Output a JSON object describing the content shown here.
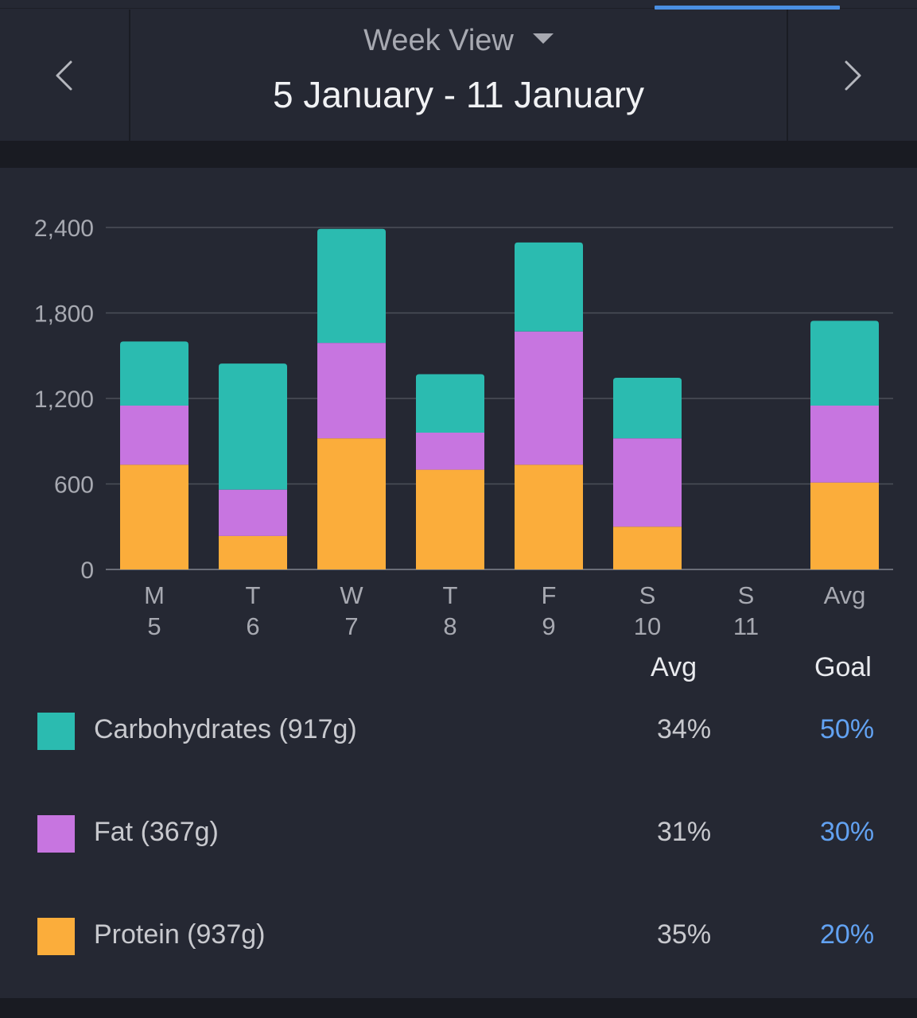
{
  "header": {
    "view_label": "Week View",
    "date_range": "5 January - 11 January"
  },
  "colors": {
    "carbohydrates": "#2bbbb0",
    "fat": "#c775e0",
    "protein": "#fbad3b",
    "goal_text": "#62a2f2",
    "active_tab": "#4a8fe3"
  },
  "icons": {
    "prev": "chevron-left-icon",
    "next": "chevron-right-icon",
    "dropdown": "caret-down-icon"
  },
  "chart_data": {
    "type": "bar",
    "stacked": true,
    "categories": [
      "M\n5",
      "T\n6",
      "W\n7",
      "T\n8",
      "F\n9",
      "S\n10",
      "S\n11",
      "Avg"
    ],
    "category_lines": [
      [
        "M",
        "5"
      ],
      [
        "T",
        "6"
      ],
      [
        "W",
        "7"
      ],
      [
        "T",
        "8"
      ],
      [
        "F",
        "9"
      ],
      [
        "S",
        "10"
      ],
      [
        "S",
        "11"
      ],
      [
        "Avg",
        ""
      ]
    ],
    "series": [
      {
        "name": "Protein",
        "color": "#fbad3b",
        "values": [
          735,
          235,
          920,
          700,
          735,
          300,
          0,
          610
        ]
      },
      {
        "name": "Fat",
        "color": "#c775e0",
        "values": [
          415,
          325,
          670,
          260,
          935,
          620,
          0,
          540
        ]
      },
      {
        "name": "Carbohydrates",
        "color": "#2bbbb0",
        "values": [
          450,
          885,
          800,
          410,
          625,
          425,
          0,
          595
        ]
      }
    ],
    "yticks": [
      "0",
      "600",
      "1,200",
      "1,800",
      "2,400"
    ],
    "ytick_values": [
      0,
      600,
      1200,
      1800,
      2400
    ],
    "ylim": [
      0,
      2400
    ],
    "grid": true
  },
  "summary": {
    "avg_header": "Avg",
    "goal_header": "Goal",
    "rows": [
      {
        "label": "Carbohydrates (917g)",
        "avg": "34%",
        "goal": "50%",
        "color": "#2bbbb0"
      },
      {
        "label": "Fat (367g)",
        "avg": "31%",
        "goal": "30%",
        "color": "#c775e0"
      },
      {
        "label": "Protein (937g)",
        "avg": "35%",
        "goal": "20%",
        "color": "#fbad3b"
      }
    ]
  }
}
